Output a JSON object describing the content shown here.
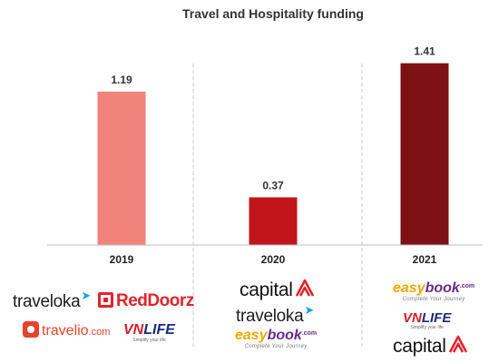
{
  "chart_data": {
    "type": "bar",
    "title": "Travel and Hospitality funding",
    "categories": [
      "2019",
      "2020",
      "2021"
    ],
    "values": [
      1.19,
      0.37,
      1.41
    ],
    "value_labels": [
      "1.19",
      "0.37",
      "1.41"
    ],
    "bar_colors": [
      "#f2837b",
      "#c0161b",
      "#7d1113"
    ],
    "ylim": [
      0,
      1.45
    ],
    "grid": "vertical dashed separators",
    "legend": "none"
  },
  "logos": {
    "2019": [
      {
        "icon": "traveloka-bird-icon",
        "text": "traveloka"
      },
      {
        "icon": "reddoorz-door-icon",
        "text": "RedDoorz"
      },
      {
        "icon": "travelio-bag-icon",
        "text": "travelio",
        "suffix": ".com"
      },
      {
        "text_vn": "VN",
        "text_life": "LIFE",
        "tagline": "Simplify your life"
      }
    ],
    "2020": [
      {
        "text": "capital",
        "icon": "capital-a-icon"
      },
      {
        "icon": "traveloka-bird-icon",
        "text": "traveloka"
      },
      {
        "text_easy": "easy",
        "text_book": "book",
        "suffix": ".com",
        "tagline": "Complete Your Journey"
      }
    ],
    "2021": [
      {
        "text_easy": "easy",
        "text_book": "book",
        "suffix": ".com",
        "tagline": "Complete Your Journey"
      },
      {
        "text_vn": "VN",
        "text_life": "LIFE",
        "tagline": "Simplify your life"
      },
      {
        "text": "capital",
        "icon": "capital-a-icon"
      }
    ]
  }
}
